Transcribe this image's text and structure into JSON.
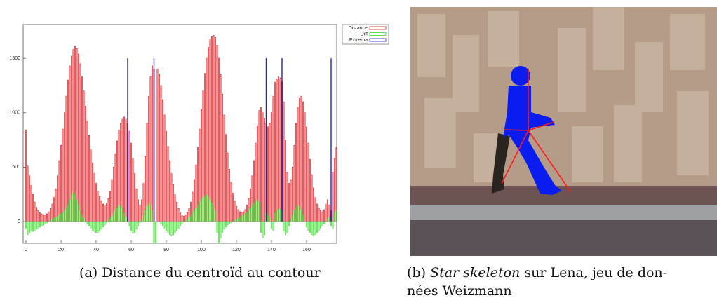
{
  "chart_data": {
    "type": "bar",
    "legend": "upper-right-outside",
    "xlim": [
      -1.6,
      177.2
    ],
    "ylim": [
      -200,
      1810
    ],
    "xticks": [
      0,
      20,
      40,
      60,
      80,
      100,
      120,
      140,
      160
    ],
    "yticks": [
      0,
      500,
      1000,
      1500
    ],
    "x": [
      0,
      1,
      2,
      3,
      4,
      5,
      6,
      7,
      8,
      9,
      10,
      11,
      12,
      13,
      14,
      15,
      16,
      17,
      18,
      19,
      20,
      21,
      22,
      23,
      24,
      25,
      26,
      27,
      28,
      29,
      30,
      31,
      32,
      33,
      34,
      35,
      36,
      37,
      38,
      39,
      40,
      41,
      42,
      43,
      44,
      45,
      46,
      47,
      48,
      49,
      50,
      51,
      52,
      53,
      54,
      55,
      56,
      57,
      58,
      59,
      60,
      61,
      62,
      63,
      64,
      65,
      66,
      67,
      68,
      69,
      70,
      71,
      72,
      73,
      74,
      75,
      76,
      77,
      78,
      79,
      80,
      81,
      82,
      83,
      84,
      85,
      86,
      87,
      88,
      89,
      90,
      91,
      92,
      93,
      94,
      95,
      96,
      97,
      98,
      99,
      100,
      101,
      102,
      103,
      104,
      105,
      106,
      107,
      108,
      109,
      110,
      111,
      112,
      113,
      114,
      115,
      116,
      117,
      118,
      119,
      120,
      121,
      122,
      123,
      124,
      125,
      126,
      127,
      128,
      129,
      130,
      131,
      132,
      133,
      134,
      135,
      136,
      137,
      138,
      139,
      140,
      141,
      142,
      143,
      144,
      145,
      146,
      147,
      148,
      149,
      150,
      151,
      152,
      153,
      154,
      155,
      156,
      157,
      158,
      159,
      160,
      161,
      162,
      163,
      164,
      165,
      166,
      167,
      168,
      169,
      170,
      171,
      172,
      173,
      174,
      175,
      176,
      177
    ],
    "series": [
      {
        "name": "Distance",
        "color": "#e0151b",
        "values": [
          840,
          510,
          420,
          330,
          250,
          180,
          130,
          100,
          80,
          70,
          60,
          60,
          70,
          90,
          120,
          160,
          220,
          300,
          420,
          560,
          700,
          850,
          1000,
          1150,
          1300,
          1430,
          1520,
          1580,
          1610,
          1590,
          1540,
          1450,
          1330,
          1200,
          1060,
          920,
          790,
          660,
          540,
          440,
          350,
          280,
          230,
          190,
          160,
          150,
          170,
          210,
          280,
          380,
          500,
          620,
          740,
          840,
          900,
          940,
          960,
          940,
          900,
          830,
          720,
          580,
          440,
          300,
          200,
          150,
          200,
          350,
          600,
          900,
          1150,
          1330,
          1430,
          1400,
          0,
          1400,
          1350,
          1250,
          1120,
          980,
          830,
          690,
          560,
          440,
          340,
          250,
          180,
          120,
          80,
          60,
          50,
          60,
          80,
          120,
          180,
          270,
          380,
          520,
          680,
          850,
          1030,
          1200,
          1360,
          1500,
          1600,
          1670,
          1700,
          1710,
          1690,
          1620,
          1500,
          1350,
          1170,
          980,
          800,
          630,
          480,
          360,
          260,
          190,
          140,
          110,
          90,
          80,
          90,
          110,
          150,
          210,
          300,
          420,
          560,
          720,
          880,
          1020,
          1050,
          1000,
          950,
          900,
          870,
          900,
          1000,
          1150,
          1280,
          1310,
          1330,
          1320,
          1290,
          1100,
          750,
          450,
          350,
          380,
          500,
          700,
          900,
          1050,
          1130,
          1150,
          1100,
          1000,
          870,
          720,
          570,
          430,
          310,
          220,
          160,
          120,
          100,
          90,
          110,
          160,
          200,
          150,
          100,
          450,
          580,
          680
        ]
      },
      {
        "name": "Diff",
        "color": "#33dd22",
        "values": [
          -60,
          -120,
          -100,
          -80,
          -90,
          -80,
          -70,
          -60,
          -50,
          -40,
          -30,
          -20,
          -10,
          0,
          10,
          20,
          30,
          40,
          50,
          60,
          70,
          80,
          100,
          120,
          150,
          200,
          250,
          280,
          260,
          200,
          150,
          100,
          60,
          30,
          0,
          -20,
          -40,
          -60,
          -80,
          -90,
          -100,
          -100,
          -90,
          -70,
          -50,
          -30,
          -10,
          10,
          30,
          50,
          80,
          110,
          130,
          150,
          140,
          120,
          80,
          40,
          0,
          -40,
          -80,
          -110,
          -100,
          -70,
          -40,
          -10,
          20,
          60,
          100,
          140,
          170,
          150,
          100,
          -200,
          -200,
          0,
          0,
          -20,
          -40,
          -60,
          -80,
          -100,
          -120,
          -130,
          -120,
          -100,
          -80,
          -60,
          -40,
          -20,
          0,
          10,
          20,
          40,
          60,
          80,
          100,
          120,
          150,
          180,
          200,
          220,
          240,
          250,
          230,
          200,
          170,
          140,
          100,
          -100,
          -200,
          -150,
          -100,
          -70,
          -50,
          -30,
          -20,
          -10,
          0,
          10,
          20,
          30,
          40,
          50,
          60,
          70,
          80,
          100,
          120,
          150,
          170,
          190,
          200,
          180,
          -100,
          -150,
          -120,
          80,
          60,
          40,
          -60,
          -80,
          80,
          100,
          110,
          120,
          100,
          -80,
          -120,
          -100,
          -40,
          20,
          60,
          100,
          130,
          150,
          140,
          110,
          60,
          0,
          -50,
          -80,
          -100,
          -120,
          -130,
          -120,
          -100,
          -80,
          -60,
          -40,
          -20,
          0,
          20,
          40,
          -40,
          -60,
          80,
          100
        ]
      }
    ],
    "extrema": {
      "name": "Extrema",
      "color": "#2222cc",
      "x": [
        58,
        73,
        137,
        146,
        174
      ],
      "values": [
        1500,
        1500,
        1500,
        1500,
        1500
      ]
    }
  },
  "captions": {
    "a": "(a) Distance du centroïd au contour",
    "b_label": "(b)",
    "b_italic": "Star skeleton",
    "b_text": "sur Lena, jeu de don-",
    "b_line2": "nées Weizmann"
  }
}
